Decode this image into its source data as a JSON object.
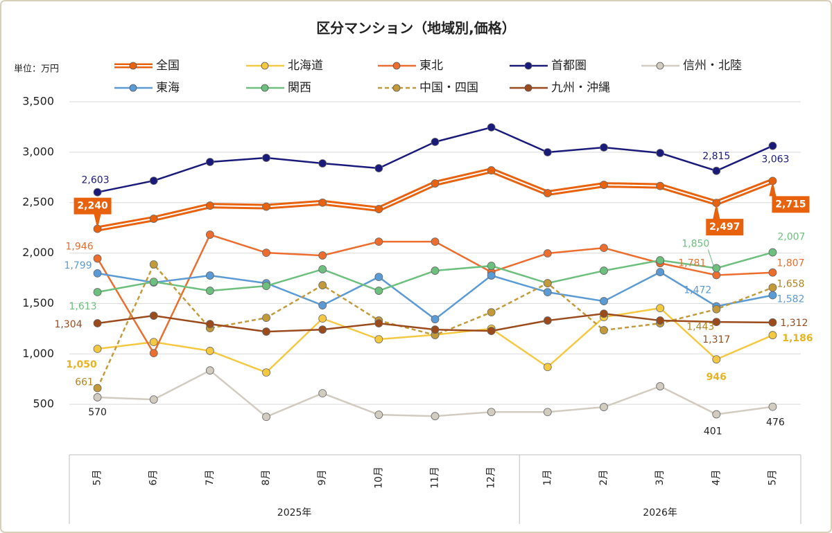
{
  "chart_data": {
    "type": "line",
    "title": "区分マンション（地域別,価格）",
    "y_unit": "単位：万円",
    "category_groups": [
      {
        "label": "2025年",
        "categories": [
          "5月",
          "6月",
          "7月",
          "8月",
          "9月",
          "10月",
          "11月",
          "12月"
        ]
      },
      {
        "label": "2026年",
        "categories": [
          "1月",
          "2月",
          "3月",
          "4月",
          "5月"
        ]
      }
    ],
    "ylim": [
      0,
      3500
    ],
    "yticks": [
      {
        "value": 500,
        "label": "500"
      },
      {
        "value": 1000,
        "label": "1,000"
      },
      {
        "value": 1500,
        "label": "1,500"
      },
      {
        "value": 2000,
        "label": "2,000"
      },
      {
        "value": 2500,
        "label": "2,500"
      },
      {
        "value": 3000,
        "label": "3,000"
      },
      {
        "value": 3500,
        "label": "3,500"
      }
    ],
    "grid": true,
    "series": [
      {
        "name": "全国",
        "color": "#e8620e",
        "style": "double",
        "values": [
          2240,
          2340,
          2470,
          2460,
          2500,
          2436,
          2690,
          2820,
          2594,
          2676,
          2665,
          2497,
          2715
        ],
        "value_labels": [
          "2,240",
          null,
          null,
          null,
          null,
          null,
          null,
          null,
          null,
          null,
          null,
          "2,497",
          "2,715"
        ]
      },
      {
        "name": "北海道",
        "color": "#f5c842",
        "values": [
          1050,
          1118,
          1030,
          816,
          1351,
          1145,
          1190,
          1250,
          870,
          1365,
          1454,
          946,
          1186
        ],
        "value_labels": [
          "1,050",
          null,
          null,
          null,
          null,
          null,
          null,
          null,
          null,
          null,
          null,
          "946",
          "1,186"
        ]
      },
      {
        "name": "東北",
        "color": "#ec6d2d",
        "values": [
          1946,
          1008,
          2182,
          2003,
          1976,
          2113,
          2113,
          1811,
          1997,
          2051,
          1900,
          1781,
          1807
        ],
        "value_labels": [
          "1,946",
          null,
          null,
          null,
          null,
          null,
          null,
          null,
          null,
          null,
          null,
          "1,781",
          "1,807"
        ]
      },
      {
        "name": "首都圏",
        "color": "#1a1a7a",
        "values": [
          2603,
          2717,
          2903,
          2944,
          2889,
          2841,
          3102,
          3246,
          2999,
          3047,
          2992,
          2815,
          3063
        ],
        "value_labels": [
          "2,603",
          null,
          null,
          null,
          null,
          null,
          null,
          null,
          null,
          null,
          null,
          "2,815",
          "3,063"
        ]
      },
      {
        "name": "信州・北陸",
        "color": "#d2ccc0",
        "values": [
          570,
          548,
          836,
          376,
          610,
          397,
          383,
          424,
          424,
          473,
          679,
          401,
          476
        ],
        "value_labels": [
          "570",
          null,
          null,
          null,
          null,
          null,
          null,
          null,
          null,
          null,
          null,
          "401",
          "476"
        ]
      },
      {
        "name": "東海",
        "color": "#5b9bd5",
        "values": [
          1799,
          1708,
          1777,
          1701,
          1482,
          1763,
          1344,
          1777,
          1612,
          1523,
          1811,
          1472,
          1582
        ],
        "value_labels": [
          "1,799",
          null,
          null,
          null,
          null,
          null,
          null,
          null,
          null,
          null,
          null,
          "1,472",
          "1,582"
        ]
      },
      {
        "name": "関西",
        "color": "#6cbf7c",
        "values": [
          1613,
          1715,
          1626,
          1674,
          1839,
          1626,
          1825,
          1873,
          1701,
          1825,
          1928,
          1850,
          2007
        ],
        "value_labels": [
          "1,613",
          null,
          null,
          null,
          null,
          null,
          null,
          null,
          null,
          null,
          null,
          "1,850",
          "2,007"
        ]
      },
      {
        "name": "中国・四国",
        "color": "#c39a3a",
        "style": "dashed",
        "values": [
          661,
          1887,
          1255,
          1358,
          1681,
          1331,
          1187,
          1413,
          1701,
          1235,
          1303,
          1443,
          1658
        ],
        "value_labels": [
          "661",
          null,
          null,
          null,
          null,
          null,
          null,
          null,
          null,
          null,
          null,
          "1,443",
          "1,658"
        ]
      },
      {
        "name": "九州・沖縄",
        "color": "#9b4a1c",
        "values": [
          1304,
          1379,
          1296,
          1221,
          1241,
          1303,
          1241,
          1228,
          1331,
          1399,
          1331,
          1317,
          1312
        ],
        "value_labels": [
          "1,304",
          null,
          null,
          null,
          null,
          null,
          null,
          null,
          null,
          null,
          null,
          "1,317",
          "1,312"
        ]
      }
    ]
  }
}
